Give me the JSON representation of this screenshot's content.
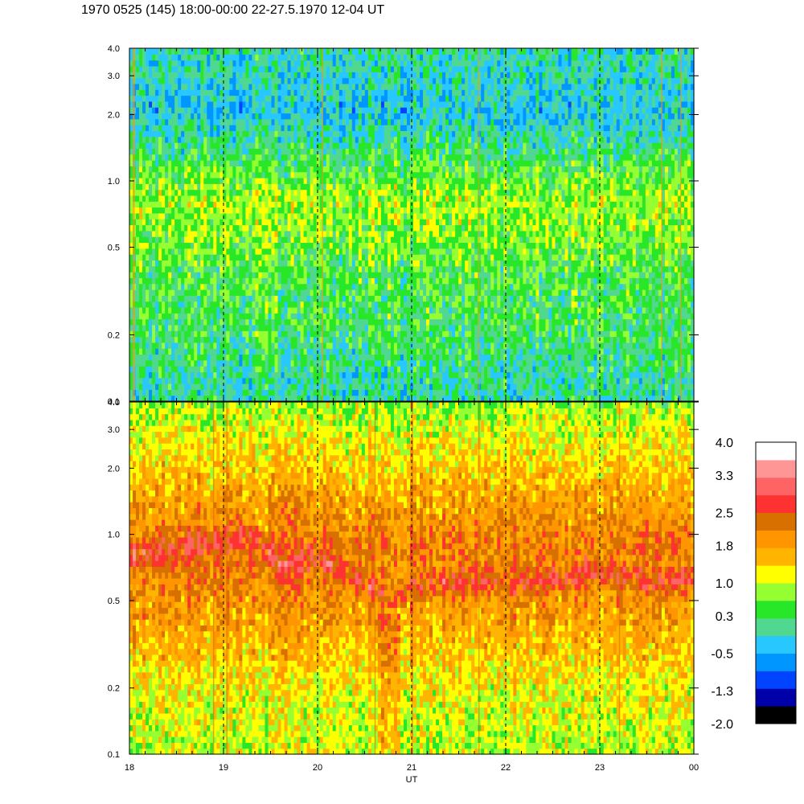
{
  "title": "1970 0525 (145) 18:00-00:00 22-27.5.1970  12-04 UT",
  "chart_data": [
    {
      "type": "heatmap",
      "panel": "upper",
      "title": "1970 0525 (145) 18:00-00:00 22-27.5.1970  12-04 UT",
      "xlabel": "UT",
      "ylabel": "",
      "x_ticks": [
        "18",
        "19",
        "20",
        "21",
        "22",
        "23",
        "00"
      ],
      "x_range": [
        18,
        24
      ],
      "y_ticks": [
        "0.1",
        "0.2",
        "0.5",
        "1.0",
        "2.0",
        "3.0",
        "4.0"
      ],
      "y_tick_values": [
        0.1,
        0.2,
        0.5,
        1.0,
        2.0,
        3.0,
        4.0
      ],
      "ylim": [
        0.1,
        4.0
      ],
      "y_scale": "log",
      "vertical_markers": [
        19,
        20,
        21,
        22,
        23
      ],
      "levels_by_frequency": [
        {
          "freq": 0.12,
          "level": 0.0
        },
        {
          "freq": 0.2,
          "level": 0.3
        },
        {
          "freq": 0.35,
          "level": 0.4
        },
        {
          "freq": 0.5,
          "level": 0.6
        },
        {
          "freq": 0.8,
          "level": 0.9
        },
        {
          "freq": 1.0,
          "level": 0.6
        },
        {
          "freq": 1.5,
          "level": 0.1
        },
        {
          "freq": 2.0,
          "level": -0.3
        },
        {
          "freq": 3.0,
          "level": -0.1
        },
        {
          "freq": 4.0,
          "level": 0.0
        }
      ]
    },
    {
      "type": "heatmap",
      "panel": "lower",
      "xlabel": "UT",
      "ylabel": "",
      "x_ticks": [
        "18",
        "19",
        "20",
        "21",
        "22",
        "23",
        "00"
      ],
      "x_range": [
        18,
        24
      ],
      "y_ticks": [
        "0.1",
        "0.2",
        "0.5",
        "1.0",
        "2.0",
        "3.0",
        "4.0"
      ],
      "y_tick_values": [
        0.1,
        0.2,
        0.5,
        1.0,
        2.0,
        3.0,
        4.0
      ],
      "ylim": [
        0.1,
        4.0
      ],
      "y_scale": "log",
      "vertical_markers": [
        19,
        20,
        21,
        22,
        23
      ],
      "levels_by_frequency": [
        {
          "freq": 0.12,
          "level": 1.0
        },
        {
          "freq": 0.2,
          "level": 1.2
        },
        {
          "freq": 0.35,
          "level": 1.7
        },
        {
          "freq": 0.6,
          "level": 2.1
        },
        {
          "freq": 0.9,
          "level": 2.2
        },
        {
          "freq": 1.5,
          "level": 1.8
        },
        {
          "freq": 2.0,
          "level": 1.5
        },
        {
          "freq": 3.0,
          "level": 1.1
        },
        {
          "freq": 4.0,
          "level": 0.8
        }
      ],
      "ridge": {
        "x": [
          18.0,
          18.5,
          19.0,
          19.3,
          19.6,
          20.0,
          20.5,
          20.8,
          21.0,
          21.5,
          22.0,
          22.5,
          23.0,
          23.5,
          24.0
        ],
        "freq": [
          0.8,
          0.85,
          0.95,
          1.0,
          0.72,
          0.78,
          0.6,
          0.5,
          0.58,
          0.62,
          0.6,
          0.62,
          0.68,
          0.6,
          0.62
        ]
      },
      "notch": {
        "center": 20.75,
        "level": 1.0
      }
    }
  ],
  "colorbar": {
    "labels": [
      "4.0",
      "3.3",
      "2.5",
      "1.8",
      "1.0",
      "0.3",
      "-0.5",
      "-1.3",
      "-2.0"
    ],
    "label_values": [
      4.0,
      3.3,
      2.5,
      1.8,
      1.0,
      0.3,
      -0.5,
      -1.3,
      -2.0
    ],
    "range": [
      -2.0,
      4.0
    ],
    "colors": [
      "#000000",
      "#0000a8",
      "#0044ff",
      "#0096ff",
      "#28c8ff",
      "#50d890",
      "#28e628",
      "#96ff32",
      "#ffff00",
      "#ffb400",
      "#ff9600",
      "#d87000",
      "#ff3232",
      "#ff6464",
      "#ff9696",
      "#ffffff"
    ]
  }
}
